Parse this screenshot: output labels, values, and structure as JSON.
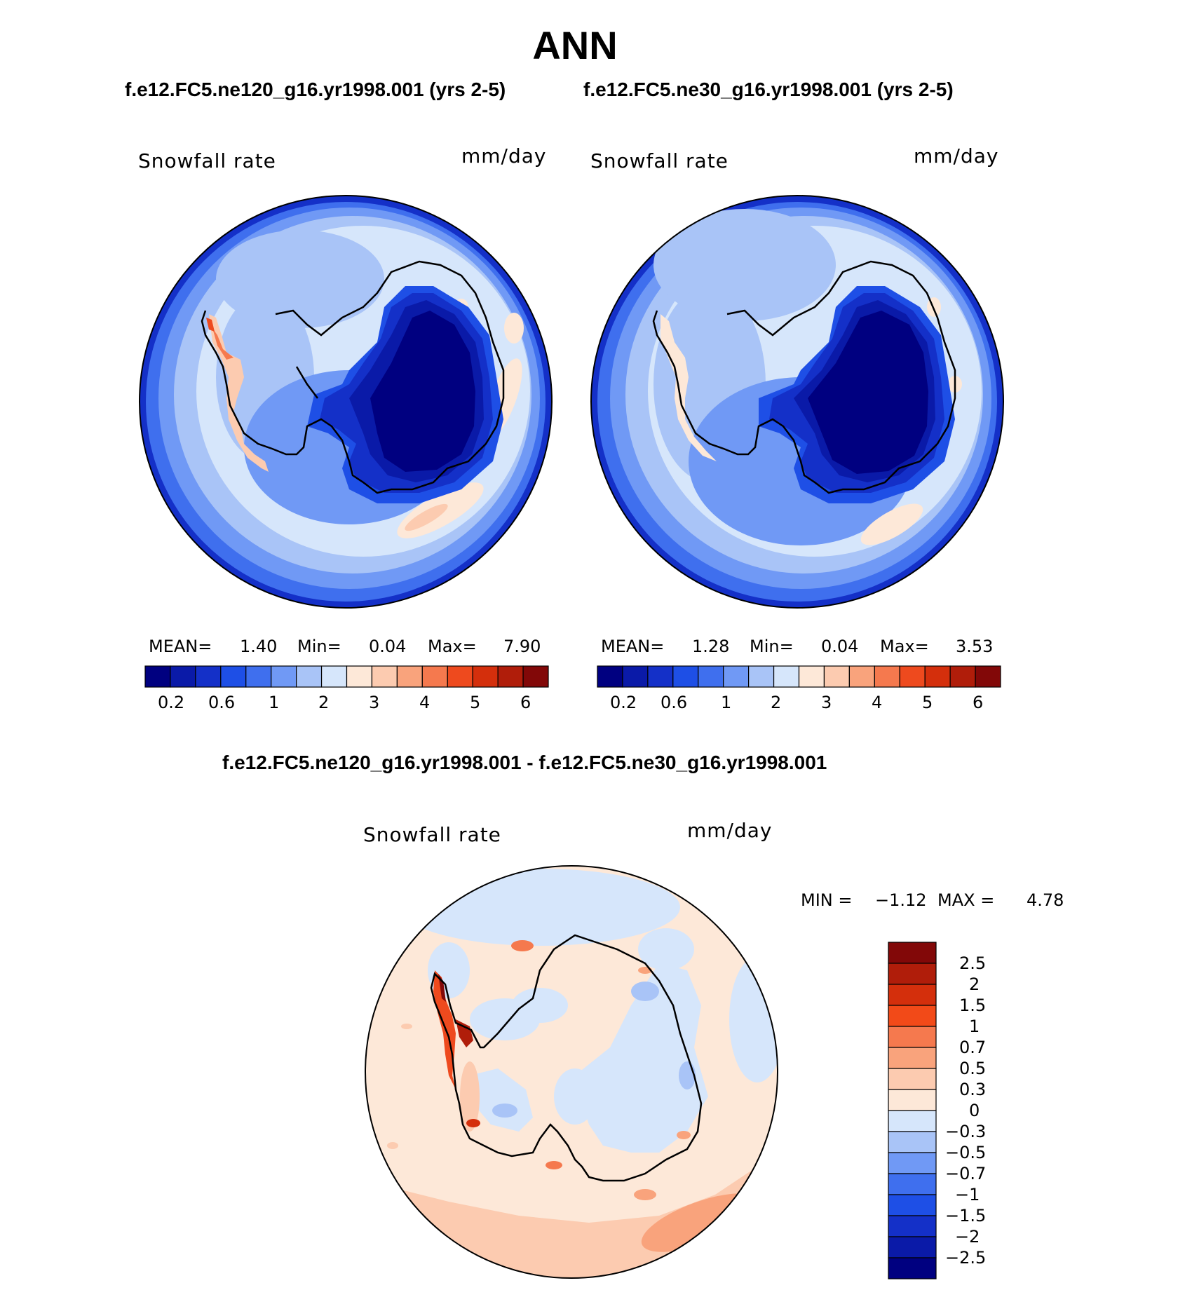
{
  "title": "ANN",
  "panels": [
    {
      "case_label": "f.e12.FC5.ne120_g16.yr1998.001 (yrs 2-5)",
      "variable": "Snowfall rate",
      "units": "mm/day",
      "stats": {
        "mean_label": "MEAN=",
        "mean": "1.40",
        "min_label": "Min=",
        "min": "0.04",
        "max_label": "Max=",
        "max": "7.90"
      }
    },
    {
      "case_label": "f.e12.FC5.ne30_g16.yr1998.001 (yrs 2-5)",
      "variable": "Snowfall rate",
      "units": "mm/day",
      "stats": {
        "mean_label": "MEAN=",
        "mean": "1.28",
        "min_label": "Min=",
        "min": "0.04",
        "max_label": "Max=",
        "max": "3.53"
      }
    }
  ],
  "colorbar": {
    "colors": [
      "#000080",
      "#0a1aa8",
      "#1430c8",
      "#1e4fe6",
      "#3f6fee",
      "#7099f5",
      "#a9c4f7",
      "#d6e6fb",
      "#fde8d8",
      "#fccbb0",
      "#f9a37c",
      "#f5794e",
      "#ee4a1e",
      "#d42f0c",
      "#b01d0a",
      "#820808"
    ],
    "tick_labels": [
      "0.2",
      "0.6",
      "1",
      "2",
      "3",
      "4",
      "5",
      "6"
    ]
  },
  "difference": {
    "label": "f.e12.FC5.ne120_g16.yr1998.001 - f.e12.FC5.ne30_g16.yr1998.001",
    "variable": "Snowfall rate",
    "units": "mm/day",
    "stats": {
      "min_label": "MIN =",
      "min": "−1.12",
      "max_label": "MAX =",
      "max": "4.78"
    },
    "colors": [
      "#820808",
      "#b01d0a",
      "#d42f0c",
      "#f24a18",
      "#f5794e",
      "#f9a37c",
      "#fccbb0",
      "#fde8d8",
      "#d6e6fb",
      "#a9c4f7",
      "#7099f5",
      "#3f6fee",
      "#1e4fe6",
      "#1430c8",
      "#0a1aa8",
      "#000080"
    ],
    "tick_labels": [
      "2.5",
      "2",
      "1.5",
      "1",
      "0.7",
      "0.5",
      "0.3",
      "0",
      "−0.3",
      "−0.5",
      "−0.7",
      "−1",
      "−1.5",
      "−2",
      "−2.5"
    ]
  }
}
